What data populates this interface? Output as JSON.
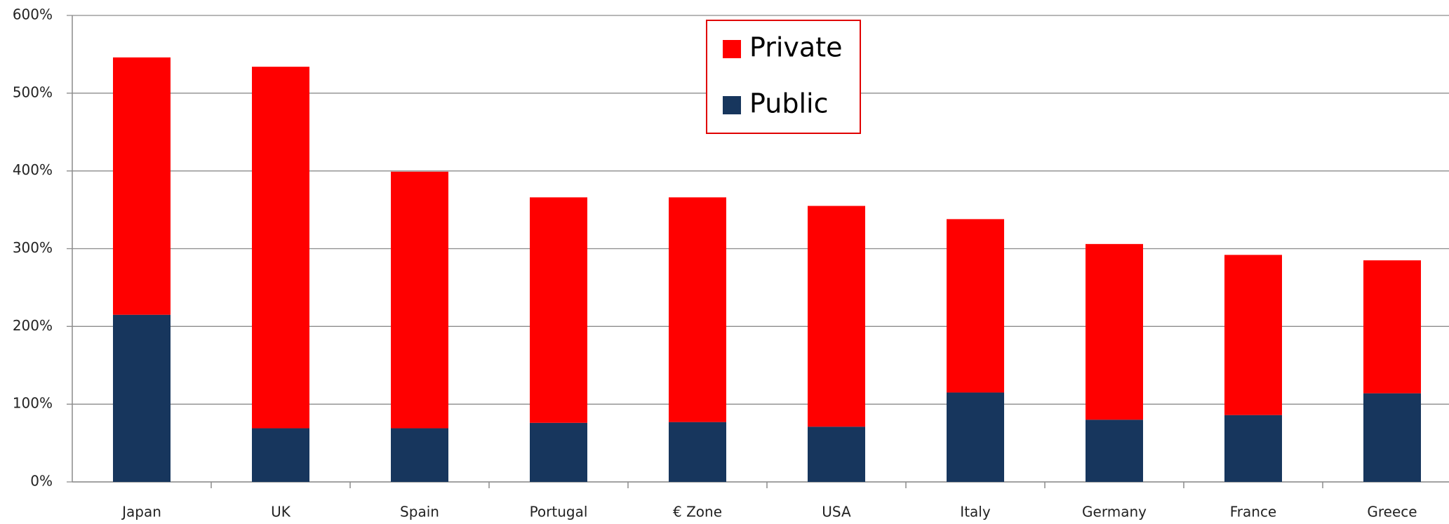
{
  "chart_data": {
    "type": "stacked_bar",
    "categories": [
      "Japan",
      "UK",
      "Spain",
      "Portugal",
      "€ Zone",
      "USA",
      "Italy",
      "Germany",
      "France",
      "Greece"
    ],
    "series": [
      {
        "name": "Public",
        "color": "#17365d",
        "values": [
          215,
          69,
          69,
          76,
          77,
          71,
          115,
          80,
          86,
          114
        ]
      },
      {
        "name": "Private",
        "color": "#ff0000",
        "values": [
          331,
          465,
          330,
          290,
          289,
          284,
          223,
          226,
          206,
          171
        ]
      }
    ],
    "ylim": [
      0,
      600
    ],
    "yticks": [
      {
        "value": 0,
        "label": "0%"
      },
      {
        "value": 100,
        "label": "100%"
      },
      {
        "value": 200,
        "label": "200%"
      },
      {
        "value": 300,
        "label": "300%"
      },
      {
        "value": 400,
        "label": "400%"
      },
      {
        "value": 500,
        "label": "500%"
      },
      {
        "value": 600,
        "label": "600%"
      }
    ],
    "grid": true,
    "legend": "top"
  }
}
